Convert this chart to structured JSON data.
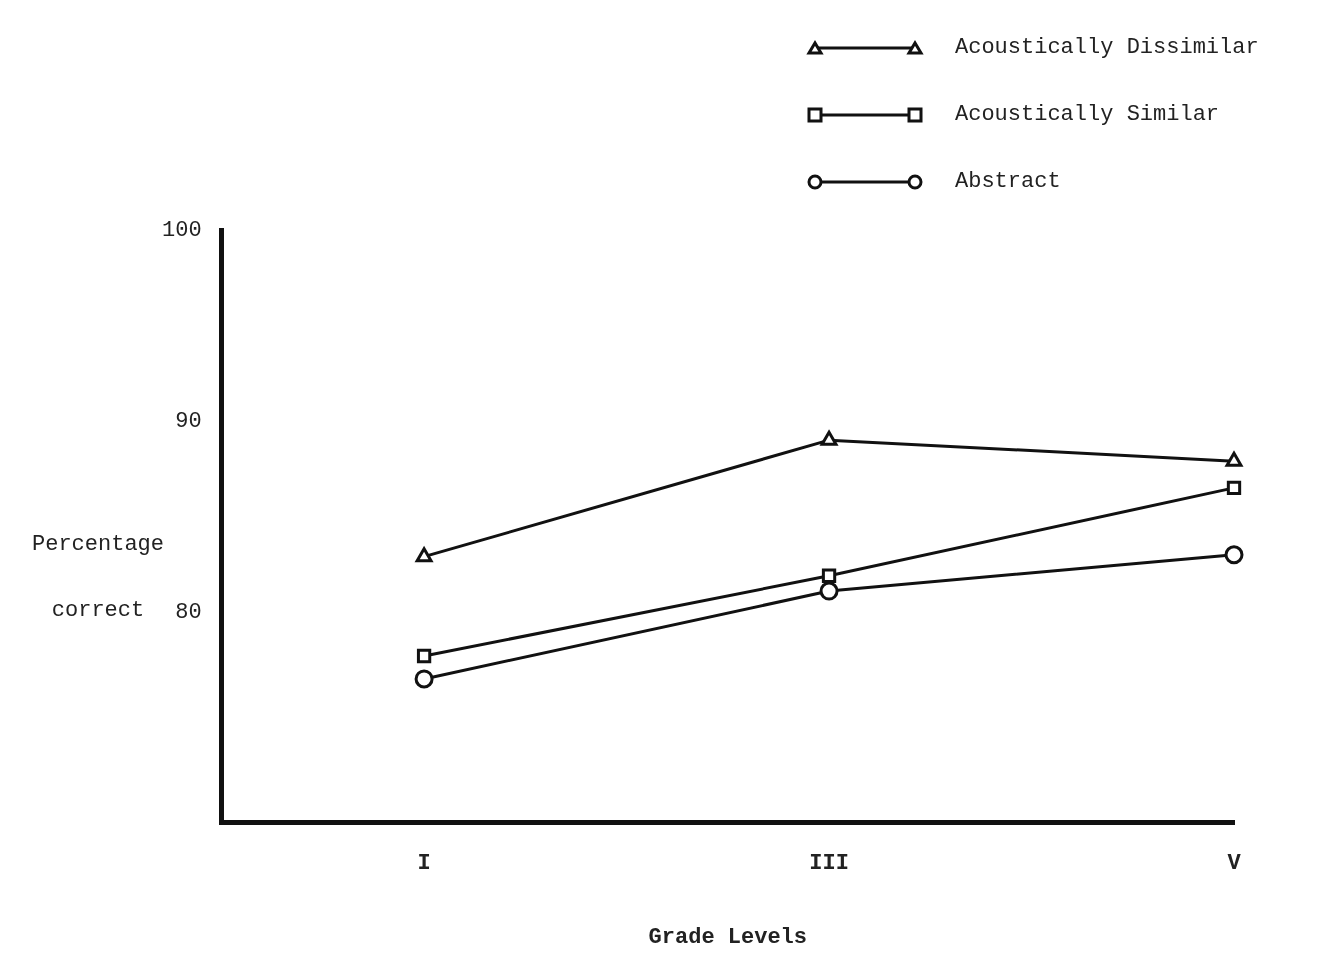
{
  "chart_data": {
    "type": "line",
    "xlabel": "Grade Levels",
    "ylabel": "Percentage correct",
    "categories": [
      "I",
      "III",
      "V"
    ],
    "ylim": [
      69,
      100
    ],
    "yticks": [
      80,
      90,
      100
    ],
    "grid": false,
    "legend": "top right",
    "line_style": "solid",
    "series": [
      {
        "name": "Acoustically Dissimilar",
        "color": "#111111",
        "marker": "triangle",
        "values": [
          82.9,
          89.0,
          87.9
        ]
      },
      {
        "name": "Acoustically Similar",
        "color": "#111111",
        "marker": "square",
        "values": [
          77.7,
          81.9,
          86.5
        ]
      },
      {
        "name": "Abstract",
        "color": "#111111",
        "marker": "circle",
        "values": [
          76.5,
          81.1,
          83.0
        ]
      }
    ]
  }
}
